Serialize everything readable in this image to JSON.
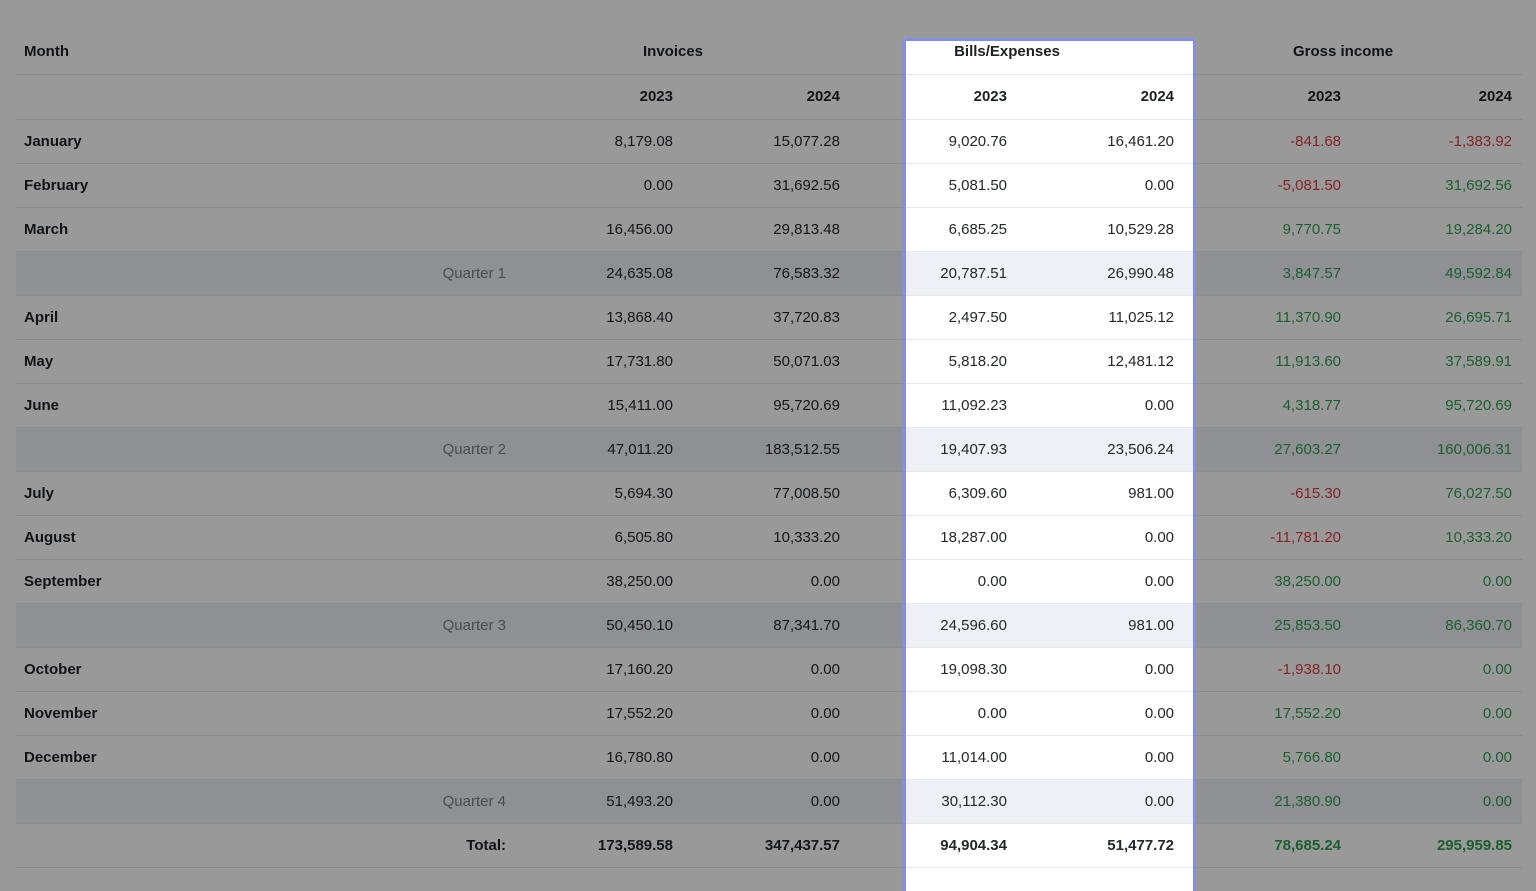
{
  "table": {
    "columns": {
      "month_header": "Month",
      "groups": [
        {
          "label": "Invoices"
        },
        {
          "label": "Bills/Expenses"
        },
        {
          "label": "Gross income"
        }
      ],
      "year_headers": [
        "2023",
        "2024"
      ]
    },
    "rows": [
      {
        "type": "month",
        "label": "January",
        "invoices": [
          "8,179.08",
          "15,077.28"
        ],
        "bills": [
          "9,020.76",
          "16,461.20"
        ],
        "gross": [
          "-841.68",
          "-1,383.92"
        ]
      },
      {
        "type": "month",
        "label": "February",
        "invoices": [
          "0.00",
          "31,692.56"
        ],
        "bills": [
          "5,081.50",
          "0.00"
        ],
        "gross": [
          "-5,081.50",
          "31,692.56"
        ]
      },
      {
        "type": "month",
        "label": "March",
        "invoices": [
          "16,456.00",
          "29,813.48"
        ],
        "bills": [
          "6,685.25",
          "10,529.28"
        ],
        "gross": [
          "9,770.75",
          "19,284.20"
        ]
      },
      {
        "type": "quarter",
        "label": "Quarter 1",
        "invoices": [
          "24,635.08",
          "76,583.32"
        ],
        "bills": [
          "20,787.51",
          "26,990.48"
        ],
        "gross": [
          "3,847.57",
          "49,592.84"
        ]
      },
      {
        "type": "month",
        "label": "April",
        "invoices": [
          "13,868.40",
          "37,720.83"
        ],
        "bills": [
          "2,497.50",
          "11,025.12"
        ],
        "gross": [
          "11,370.90",
          "26,695.71"
        ]
      },
      {
        "type": "month",
        "label": "May",
        "invoices": [
          "17,731.80",
          "50,071.03"
        ],
        "bills": [
          "5,818.20",
          "12,481.12"
        ],
        "gross": [
          "11,913.60",
          "37,589.91"
        ]
      },
      {
        "type": "month",
        "label": "June",
        "invoices": [
          "15,411.00",
          "95,720.69"
        ],
        "bills": [
          "11,092.23",
          "0.00"
        ],
        "gross": [
          "4,318.77",
          "95,720.69"
        ]
      },
      {
        "type": "quarter",
        "label": "Quarter 2",
        "invoices": [
          "47,011.20",
          "183,512.55"
        ],
        "bills": [
          "19,407.93",
          "23,506.24"
        ],
        "gross": [
          "27,603.27",
          "160,006.31"
        ]
      },
      {
        "type": "month",
        "label": "July",
        "invoices": [
          "5,694.30",
          "77,008.50"
        ],
        "bills": [
          "6,309.60",
          "981.00"
        ],
        "gross": [
          "-615.30",
          "76,027.50"
        ]
      },
      {
        "type": "month",
        "label": "August",
        "invoices": [
          "6,505.80",
          "10,333.20"
        ],
        "bills": [
          "18,287.00",
          "0.00"
        ],
        "gross": [
          "-11,781.20",
          "10,333.20"
        ]
      },
      {
        "type": "month",
        "label": "September",
        "invoices": [
          "38,250.00",
          "0.00"
        ],
        "bills": [
          "0.00",
          "0.00"
        ],
        "gross": [
          "38,250.00",
          "0.00"
        ]
      },
      {
        "type": "quarter",
        "label": "Quarter 3",
        "invoices": [
          "50,450.10",
          "87,341.70"
        ],
        "bills": [
          "24,596.60",
          "981.00"
        ],
        "gross": [
          "25,853.50",
          "86,360.70"
        ]
      },
      {
        "type": "month",
        "label": "October",
        "invoices": [
          "17,160.20",
          "0.00"
        ],
        "bills": [
          "19,098.30",
          "0.00"
        ],
        "gross": [
          "-1,938.10",
          "0.00"
        ]
      },
      {
        "type": "month",
        "label": "November",
        "invoices": [
          "17,552.20",
          "0.00"
        ],
        "bills": [
          "0.00",
          "0.00"
        ],
        "gross": [
          "17,552.20",
          "0.00"
        ]
      },
      {
        "type": "month",
        "label": "December",
        "invoices": [
          "16,780.80",
          "0.00"
        ],
        "bills": [
          "11,014.00",
          "0.00"
        ],
        "gross": [
          "5,766.80",
          "0.00"
        ]
      },
      {
        "type": "quarter",
        "label": "Quarter 4",
        "invoices": [
          "51,493.20",
          "0.00"
        ],
        "bills": [
          "30,112.30",
          "0.00"
        ],
        "gross": [
          "21,380.90",
          "0.00"
        ]
      },
      {
        "type": "total",
        "label": "Total:",
        "invoices": [
          "173,589.58",
          "347,437.57"
        ],
        "bills": [
          "94,904.34",
          "51,477.72"
        ],
        "gross": [
          "78,685.24",
          "295,959.85"
        ]
      }
    ]
  },
  "highlight": {
    "target_group": "Bills/Expenses",
    "border_color": "#828ee7"
  },
  "colors": {
    "positive": "#2e9e4f",
    "negative": "#dd3c41",
    "quarter_row_bg": "#eef0f5"
  }
}
